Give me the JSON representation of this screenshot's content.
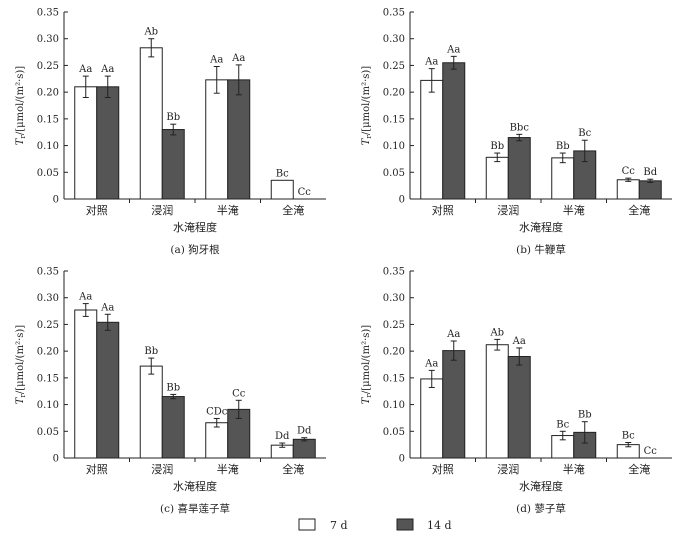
{
  "figure": {
    "legend": [
      {
        "label": "7 d",
        "color": "#ffffff"
      },
      {
        "label": "14 d",
        "color": "#555555"
      }
    ]
  },
  "chart_data": [
    {
      "type": "bar",
      "caption": "(a) 狗牙根",
      "xlabel": "水淹程度",
      "ylabel": "Tr/[μmol/(m²·s)]",
      "ylim": [
        0,
        0.35
      ],
      "yticks": [
        "0",
        "0.05",
        "0.10",
        "0.15",
        "0.20",
        "0.25",
        "0.30",
        "0.35"
      ],
      "categories": [
        "对照",
        "浸润",
        "半淹",
        "全淹"
      ],
      "series": [
        {
          "name": "7 d",
          "values": [
            0.21,
            0.283,
            0.223,
            0.035
          ],
          "errors": [
            0.02,
            0.017,
            0.025,
            0.0
          ],
          "labels": [
            "Aa",
            "Ab",
            "Aa",
            "Bc"
          ]
        },
        {
          "name": "14 d",
          "values": [
            0.21,
            0.13,
            0.223,
            0.0
          ],
          "errors": [
            0.02,
            0.01,
            0.028,
            0.0
          ],
          "labels": [
            "Aa",
            "Bb",
            "Aa",
            "Cc"
          ]
        }
      ]
    },
    {
      "type": "bar",
      "caption": "(b) 牛鞭草",
      "xlabel": "水淹程度",
      "ylabel": "Tr/[μmol/(m²·s)]",
      "ylim": [
        0,
        0.35
      ],
      "yticks": [
        "0",
        "0.05",
        "0.10",
        "0.15",
        "0.20",
        "0.25",
        "0.30",
        "0.35"
      ],
      "categories": [
        "对照",
        "浸润",
        "半淹",
        "全淹"
      ],
      "series": [
        {
          "name": "7 d",
          "values": [
            0.222,
            0.078,
            0.077,
            0.036
          ],
          "errors": [
            0.022,
            0.008,
            0.009,
            0.003
          ],
          "labels": [
            "Aa",
            "Bb",
            "Bb",
            "Cc"
          ]
        },
        {
          "name": "14 d",
          "values": [
            0.255,
            0.115,
            0.09,
            0.034
          ],
          "errors": [
            0.012,
            0.006,
            0.02,
            0.003
          ],
          "labels": [
            "Aa",
            "Bbc",
            "Bc",
            "Bd"
          ]
        }
      ]
    },
    {
      "type": "bar",
      "caption": "(c) 喜旱莲子草",
      "xlabel": "水淹程度",
      "ylabel": "Tr/[μmol/(m²·s)]",
      "ylim": [
        0,
        0.35
      ],
      "yticks": [
        "0",
        "0.05",
        "0.10",
        "0.15",
        "0.20",
        "0.25",
        "0.30",
        "0.35"
      ],
      "categories": [
        "对照",
        "浸润",
        "半淹",
        "全淹"
      ],
      "series": [
        {
          "name": "7 d",
          "values": [
            0.277,
            0.172,
            0.066,
            0.024
          ],
          "errors": [
            0.012,
            0.015,
            0.008,
            0.004
          ],
          "labels": [
            "Aa",
            "Bb",
            "CDc",
            "Dd"
          ]
        },
        {
          "name": "14 d",
          "values": [
            0.254,
            0.115,
            0.091,
            0.035
          ],
          "errors": [
            0.015,
            0.004,
            0.017,
            0.003
          ],
          "labels": [
            "Aa",
            "Bb",
            "Cc",
            "Dd"
          ]
        }
      ]
    },
    {
      "type": "bar",
      "caption": "(d) 蓼子草",
      "xlabel": "水淹程度",
      "ylabel": "Tr/[μmol/(m²·s)]",
      "ylim": [
        0,
        0.35
      ],
      "yticks": [
        "0",
        "0.05",
        "0.10",
        "0.15",
        "0.20",
        "0.25",
        "0.30",
        "0.35"
      ],
      "categories": [
        "对照",
        "浸润",
        "半淹",
        "全淹"
      ],
      "series": [
        {
          "name": "7 d",
          "values": [
            0.148,
            0.212,
            0.042,
            0.025
          ],
          "errors": [
            0.016,
            0.01,
            0.008,
            0.004
          ],
          "labels": [
            "Aa",
            "Ab",
            "Bc",
            "Bc"
          ]
        },
        {
          "name": "14 d",
          "values": [
            0.201,
            0.19,
            0.048,
            0.0
          ],
          "errors": [
            0.018,
            0.016,
            0.02,
            0.0
          ],
          "labels": [
            "Aa",
            "Aa",
            "Bb",
            "Cc"
          ]
        }
      ]
    }
  ]
}
